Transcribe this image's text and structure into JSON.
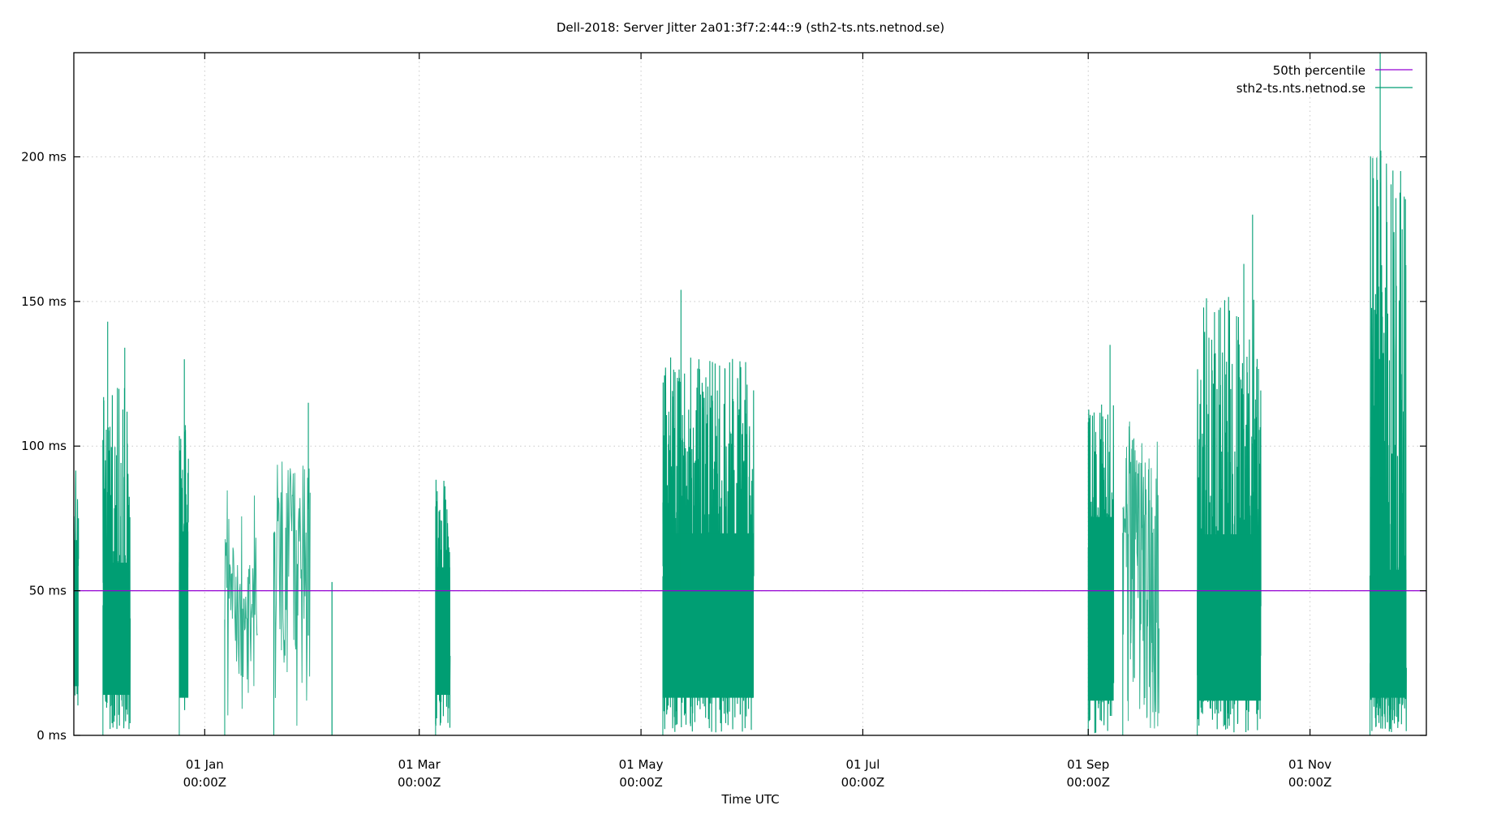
{
  "chart_data": {
    "type": "line",
    "title": "Dell-2018: Server Jitter 2a01:3f7:2:44::9 (sth2-ts.nts.netnod.se)",
    "xlabel": "Time UTC",
    "ylabel": "",
    "ylim": [
      0,
      236
    ],
    "y_unit": "ms",
    "yticks": [
      {
        "value": 0,
        "label": "0 ms"
      },
      {
        "value": 50,
        "label": "50 ms"
      },
      {
        "value": 100,
        "label": "100 ms"
      },
      {
        "value": 150,
        "label": "150 ms"
      },
      {
        "value": 200,
        "label": "200 ms"
      }
    ],
    "xticks": [
      {
        "line1": "01 Jan",
        "line2": "00:00Z",
        "day": 36
      },
      {
        "line1": "01 Mar",
        "line2": "00:00Z",
        "day": 95
      },
      {
        "line1": "01 May",
        "line2": "00:00Z",
        "day": 156
      },
      {
        "line1": "01 Jul",
        "line2": "00:00Z",
        "day": 217
      },
      {
        "line1": "01 Sep",
        "line2": "00:00Z",
        "day": 279
      },
      {
        "line1": "01 Nov",
        "line2": "00:00Z",
        "day": 340
      }
    ],
    "xrange_days": [
      0,
      372
    ],
    "grid": true,
    "legend_position": "top-right",
    "series": [
      {
        "name": "50th percentile",
        "color": "#9400d3",
        "type": "constant",
        "value": 50
      },
      {
        "name": "sth2-ts.nts.netnod.se",
        "color": "#009e73",
        "type": "bursts",
        "bursts": [
          {
            "start_day": 0.0,
            "end_day": 1.3,
            "min": 5,
            "max": 110,
            "center": 60,
            "density": "dense"
          },
          {
            "start_day": 8.0,
            "end_day": 15.5,
            "min": 2,
            "max": 143,
            "center": 45,
            "density": "dense"
          },
          {
            "start_day": 29.0,
            "end_day": 31.5,
            "min": 1,
            "max": 130,
            "center": 60,
            "density": "dense"
          },
          {
            "start_day": 41.5,
            "end_day": 50.5,
            "min": 1,
            "max": 100,
            "center": 40,
            "density": "sparse"
          },
          {
            "start_day": 55.0,
            "end_day": 65.0,
            "min": 3,
            "max": 115,
            "center": 70,
            "density": "sparse"
          },
          {
            "start_day": 71.0,
            "end_day": 71.1,
            "min": 0,
            "max": 53,
            "center": 50,
            "density": "single"
          },
          {
            "start_day": 99.5,
            "end_day": 103.5,
            "min": 2,
            "max": 104,
            "center": 50,
            "density": "dense"
          },
          {
            "start_day": 162.0,
            "end_day": 187.0,
            "min": 1,
            "max": 154,
            "center": 55,
            "density": "dense"
          },
          {
            "start_day": 279.0,
            "end_day": 286.0,
            "min": 0,
            "max": 135,
            "center": 65,
            "density": "dense"
          },
          {
            "start_day": 288.5,
            "end_day": 298.5,
            "min": 0,
            "max": 130,
            "center": 70,
            "density": "medium"
          },
          {
            "start_day": 309.0,
            "end_day": 326.5,
            "min": 0,
            "max": 180,
            "center": 50,
            "density": "dense"
          },
          {
            "start_day": 356.5,
            "end_day": 366.5,
            "min": 1,
            "max": 240,
            "center": 25,
            "density": "dense"
          }
        ],
        "notable_spikes": [
          {
            "day": 9.3,
            "value": 143
          },
          {
            "day": 14.0,
            "value": 134
          },
          {
            "day": 30.4,
            "value": 130
          },
          {
            "day": 64.5,
            "value": 115
          },
          {
            "day": 167.0,
            "value": 154
          },
          {
            "day": 285.0,
            "value": 135
          },
          {
            "day": 324.2,
            "value": 180
          },
          {
            "day": 321.8,
            "value": 163
          },
          {
            "day": 358.6,
            "value": 148
          },
          {
            "day": 359.3,
            "value": 240
          },
          {
            "day": 365.2,
            "value": 116
          }
        ]
      }
    ]
  },
  "legend": {
    "items": [
      {
        "label": "50th percentile",
        "color": "#9400d3"
      },
      {
        "label": "sth2-ts.nts.netnod.se",
        "color": "#009e73"
      }
    ]
  },
  "colors": {
    "axis": "#000000",
    "grid": "#c8c8c8",
    "background": "#ffffff"
  }
}
